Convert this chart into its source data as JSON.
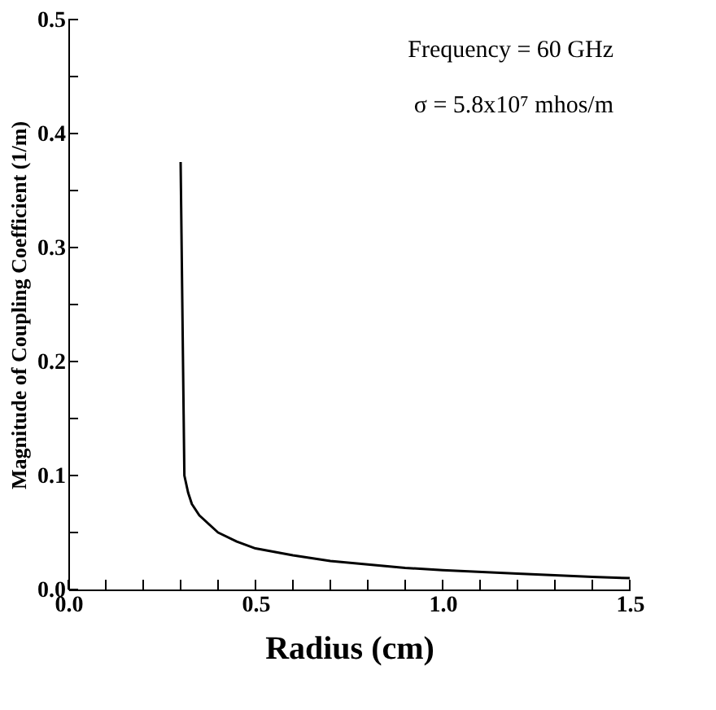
{
  "chart_data": {
    "type": "line",
    "xlabel": "Radius (cm)",
    "ylabel": "Magnitude of Coupling Coefficient (1/m)",
    "annotations": [
      "Frequency = 60 GHz",
      "σ = 5.8x10⁷  mhos/m"
    ],
    "x": [
      0.3,
      0.31,
      0.32,
      0.33,
      0.35,
      0.4,
      0.45,
      0.5,
      0.6,
      0.7,
      0.8,
      0.9,
      1.0,
      1.2,
      1.4,
      1.5
    ],
    "series": [
      {
        "color": "#000000",
        "values": [
          0.375,
          0.1,
          0.085,
          0.075,
          0.065,
          0.05,
          0.042,
          0.036,
          0.03,
          0.025,
          0.022,
          0.019,
          0.017,
          0.014,
          0.011,
          0.01
        ]
      }
    ],
    "xlim": [
      0,
      1.5
    ],
    "ylim": [
      0,
      0.5
    ],
    "xticks": [
      {
        "value": 0,
        "label": "0.0"
      },
      {
        "value": 0.1,
        "label": null
      },
      {
        "value": 0.2,
        "label": null
      },
      {
        "value": 0.3,
        "label": null
      },
      {
        "value": 0.4,
        "label": null
      },
      0.5,
      {
        "value": 0.6,
        "label": null
      },
      {
        "value": 0.7,
        "label": null
      },
      {
        "value": 0.8,
        "label": null
      },
      {
        "value": 0.9,
        "label": null
      },
      {
        "value": 1,
        "label": "1.0"
      },
      {
        "value": 1.1,
        "label": null
      },
      {
        "value": 1.2,
        "label": null
      },
      {
        "value": 1.3,
        "label": null
      },
      {
        "value": 1.4,
        "label": null
      },
      1.5
    ],
    "yticks": [
      {
        "value": 0,
        "label": "0.0"
      },
      {
        "value": 0.05,
        "label": null
      },
      0.1,
      {
        "value": 0.15,
        "label": null
      },
      0.2,
      {
        "value": 0.25,
        "label": null
      },
      0.3,
      {
        "value": 0.35,
        "label": null
      },
      0.4,
      {
        "value": 0.45,
        "label": null
      },
      0.5
    ],
    "grid": false,
    "marker": "none",
    "line_style": "solid"
  }
}
